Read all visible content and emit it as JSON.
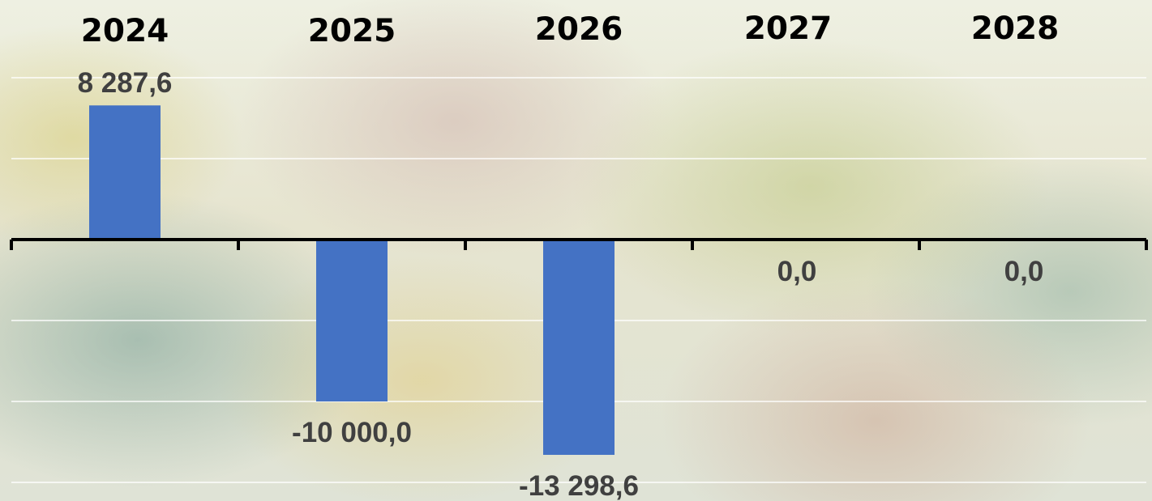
{
  "chart_data": {
    "type": "bar",
    "categories": [
      "2024",
      "2025",
      "2026",
      "2027",
      "2028"
    ],
    "values": [
      8287.6,
      -10000.0,
      -13298.6,
      0.0,
      0.0
    ],
    "data_labels": [
      "8 287,6",
      "-10 000,0",
      "-13 298,6",
      "0,0",
      "0,0"
    ],
    "title": "",
    "xlabel": "",
    "ylabel": "",
    "ylim": [
      -15000,
      10000
    ],
    "grid": true,
    "legend": "none",
    "bar_color": "#4472C4",
    "axis_color": "#000000",
    "category_labels_position": "top"
  }
}
